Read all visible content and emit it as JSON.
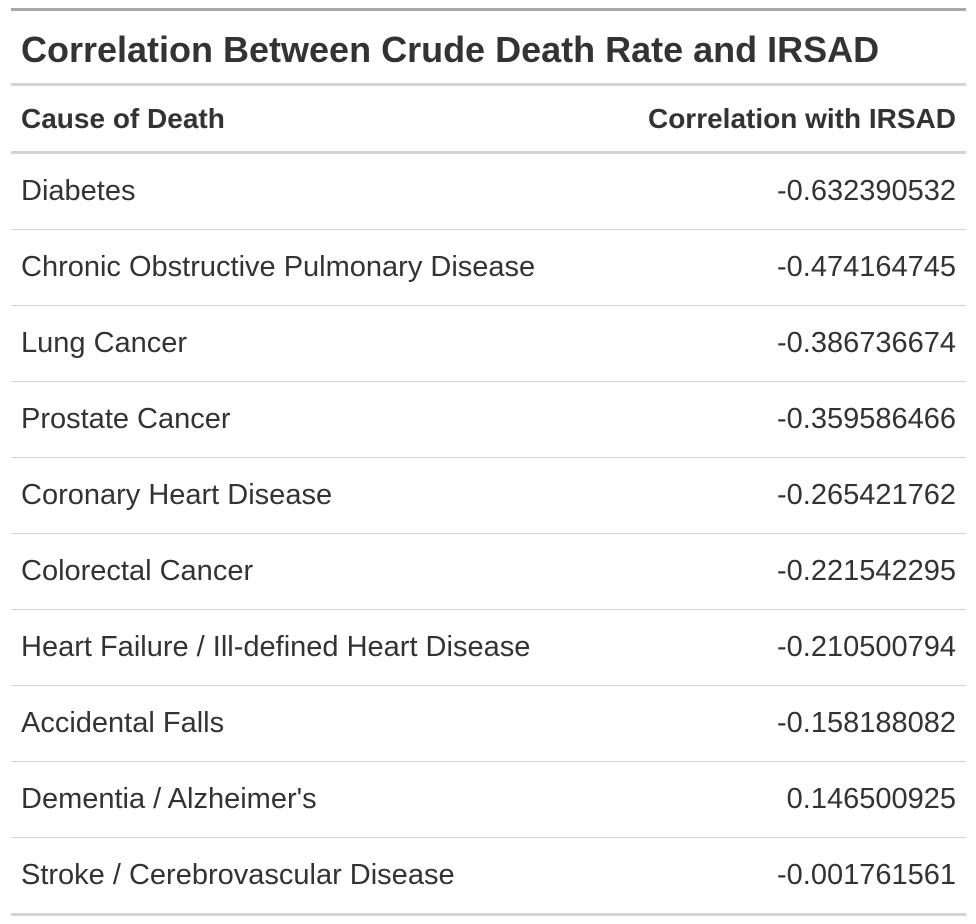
{
  "chart_data": {
    "type": "table",
    "title": "Correlation Between Crude Death Rate and IRSAD",
    "columns": [
      "Cause of Death",
      "Correlation with IRSAD"
    ],
    "rows": [
      {
        "cause": "Diabetes",
        "correlation": "-0.632390532"
      },
      {
        "cause": "Chronic Obstructive Pulmonary Disease",
        "correlation": "-0.474164745"
      },
      {
        "cause": "Lung Cancer",
        "correlation": "-0.386736674"
      },
      {
        "cause": "Prostate Cancer",
        "correlation": "-0.359586466"
      },
      {
        "cause": "Coronary Heart Disease",
        "correlation": "-0.265421762"
      },
      {
        "cause": "Colorectal Cancer",
        "correlation": "-0.221542295"
      },
      {
        "cause": "Heart Failure / Ill-defined Heart Disease",
        "correlation": "-0.210500794"
      },
      {
        "cause": "Accidental Falls",
        "correlation": "-0.158188082"
      },
      {
        "cause": "Dementia / Alzheimer's",
        "correlation": "0.146500925"
      },
      {
        "cause": "Stroke / Cerebrovascular Disease",
        "correlation": "-0.001761561"
      }
    ]
  }
}
